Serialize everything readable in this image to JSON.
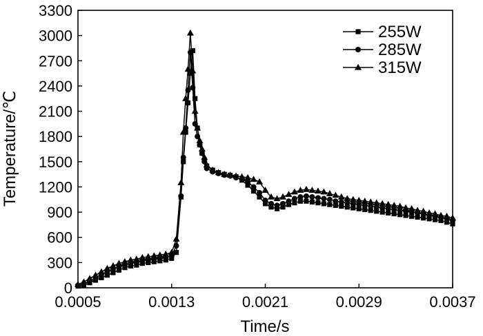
{
  "chart_data": {
    "type": "line",
    "xlabel": "Time/s",
    "ylabel": "Temperature/℃",
    "xlim": [
      0.0005,
      0.0037
    ],
    "ylim": [
      0,
      3300
    ],
    "xticks": [
      "0.0005",
      "0.0013",
      "0.0021",
      "0.0029",
      "0.0037"
    ],
    "xtick_values": [
      0.0005,
      0.0013,
      0.0021,
      0.0029,
      0.0037
    ],
    "yticks": [
      "0",
      "300",
      "600",
      "900",
      "1200",
      "1500",
      "1800",
      "2100",
      "2400",
      "2700",
      "3000",
      "3300"
    ],
    "ytick_values": [
      0,
      300,
      600,
      900,
      1200,
      1500,
      1800,
      2100,
      2400,
      2700,
      3000,
      3300
    ],
    "grid": false,
    "legend_position": "top-right",
    "series": [
      {
        "name": "255W",
        "marker": "square",
        "x": [
          0.0005,
          0.00055,
          0.0006,
          0.00065,
          0.0007,
          0.00075,
          0.0008,
          0.00085,
          0.0009,
          0.00095,
          0.001,
          0.00105,
          0.0011,
          0.00115,
          0.0012,
          0.00125,
          0.0013,
          0.00134,
          0.00138,
          0.0014,
          0.00142,
          0.00144,
          0.00146,
          0.00148,
          0.0015,
          0.00152,
          0.00154,
          0.00156,
          0.00158,
          0.0016,
          0.00165,
          0.0017,
          0.00175,
          0.0018,
          0.00185,
          0.0019,
          0.00195,
          0.002,
          0.00205,
          0.0021,
          0.00215,
          0.0022,
          0.00225,
          0.0023,
          0.00235,
          0.0024,
          0.00245,
          0.0025,
          0.00255,
          0.0026,
          0.00265,
          0.0027,
          0.00275,
          0.0028,
          0.00285,
          0.0029,
          0.00295,
          0.003,
          0.00305,
          0.0031,
          0.00315,
          0.0032,
          0.00325,
          0.0033,
          0.00335,
          0.0034,
          0.00345,
          0.0035,
          0.00355,
          0.0036,
          0.00365,
          0.0037
        ],
        "y": [
          20,
          30,
          60,
          90,
          120,
          150,
          180,
          210,
          240,
          260,
          270,
          290,
          300,
          310,
          320,
          330,
          350,
          420,
          1080,
          1500,
          1850,
          2200,
          2550,
          2820,
          2250,
          1900,
          1700,
          1600,
          1520,
          1450,
          1400,
          1370,
          1350,
          1340,
          1320,
          1280,
          1220,
          1150,
          1080,
          1000,
          960,
          940,
          960,
          990,
          1010,
          1030,
          1030,
          1020,
          1010,
          1000,
          990,
          980,
          970,
          960,
          950,
          940,
          930,
          920,
          910,
          900,
          890,
          880,
          870,
          860,
          850,
          840,
          830,
          820,
          810,
          800,
          780,
          760
        ]
      },
      {
        "name": "285W",
        "marker": "circle",
        "x": [
          0.0005,
          0.00055,
          0.0006,
          0.00065,
          0.0007,
          0.00075,
          0.0008,
          0.00085,
          0.0009,
          0.00095,
          0.001,
          0.00105,
          0.0011,
          0.00115,
          0.0012,
          0.00125,
          0.0013,
          0.00134,
          0.00138,
          0.0014,
          0.00142,
          0.00144,
          0.00146,
          0.00148,
          0.0015,
          0.00152,
          0.00154,
          0.00156,
          0.00158,
          0.0016,
          0.00165,
          0.0017,
          0.00175,
          0.0018,
          0.00185,
          0.0019,
          0.00195,
          0.002,
          0.00205,
          0.0021,
          0.00215,
          0.0022,
          0.00225,
          0.0023,
          0.00235,
          0.0024,
          0.00245,
          0.0025,
          0.00255,
          0.0026,
          0.00265,
          0.0027,
          0.00275,
          0.0028,
          0.00285,
          0.0029,
          0.00295,
          0.003,
          0.00305,
          0.0031,
          0.00315,
          0.0032,
          0.00325,
          0.0033,
          0.00335,
          0.0034,
          0.00345,
          0.0035,
          0.00355,
          0.0036,
          0.00365,
          0.0037
        ],
        "y": [
          30,
          50,
          80,
          120,
          160,
          190,
          220,
          250,
          270,
          290,
          300,
          320,
          330,
          340,
          350,
          360,
          380,
          500,
          1090,
          1550,
          1900,
          2350,
          2800,
          2380,
          1950,
          1800,
          1700,
          1600,
          1500,
          1420,
          1380,
          1360,
          1340,
          1330,
          1310,
          1290,
          1260,
          1200,
          1130,
          1040,
          1000,
          980,
          1000,
          1030,
          1060,
          1080,
          1090,
          1080,
          1070,
          1060,
          1050,
          1030,
          1020,
          1010,
          1000,
          990,
          980,
          970,
          960,
          950,
          940,
          930,
          920,
          910,
          900,
          890,
          880,
          860,
          850,
          840,
          820,
          800
        ]
      },
      {
        "name": "315W",
        "marker": "triangle",
        "x": [
          0.0005,
          0.00055,
          0.0006,
          0.00065,
          0.0007,
          0.00075,
          0.0008,
          0.00085,
          0.0009,
          0.00095,
          0.001,
          0.00105,
          0.0011,
          0.00115,
          0.0012,
          0.00125,
          0.0013,
          0.00134,
          0.00138,
          0.0014,
          0.00142,
          0.00144,
          0.00146,
          0.00148,
          0.0015,
          0.00152,
          0.00154,
          0.00156,
          0.00158,
          0.0016,
          0.00165,
          0.0017,
          0.00175,
          0.0018,
          0.00185,
          0.0019,
          0.00195,
          0.002,
          0.00205,
          0.0021,
          0.00215,
          0.0022,
          0.00225,
          0.0023,
          0.00235,
          0.0024,
          0.00245,
          0.0025,
          0.00255,
          0.0026,
          0.00265,
          0.0027,
          0.00275,
          0.0028,
          0.00285,
          0.0029,
          0.00295,
          0.003,
          0.00305,
          0.0031,
          0.00315,
          0.0032,
          0.00325,
          0.0033,
          0.00335,
          0.0034,
          0.00345,
          0.0035,
          0.00355,
          0.0036,
          0.00365,
          0.0037
        ],
        "y": [
          40,
          70,
          110,
          150,
          190,
          230,
          260,
          290,
          310,
          330,
          340,
          360,
          370,
          380,
          390,
          400,
          420,
          580,
          1250,
          1850,
          2250,
          2600,
          3030,
          2580,
          2100,
          1900,
          1750,
          1650,
          1550,
          1460,
          1400,
          1370,
          1350,
          1340,
          1330,
          1320,
          1310,
          1290,
          1260,
          1160,
          1080,
          1060,
          1080,
          1110,
          1140,
          1160,
          1170,
          1160,
          1150,
          1140,
          1120,
          1100,
          1080,
          1060,
          1050,
          1040,
          1030,
          1020,
          1010,
          1000,
          990,
          980,
          970,
          950,
          940,
          920,
          910,
          890,
          880,
          860,
          850,
          830
        ]
      }
    ]
  }
}
